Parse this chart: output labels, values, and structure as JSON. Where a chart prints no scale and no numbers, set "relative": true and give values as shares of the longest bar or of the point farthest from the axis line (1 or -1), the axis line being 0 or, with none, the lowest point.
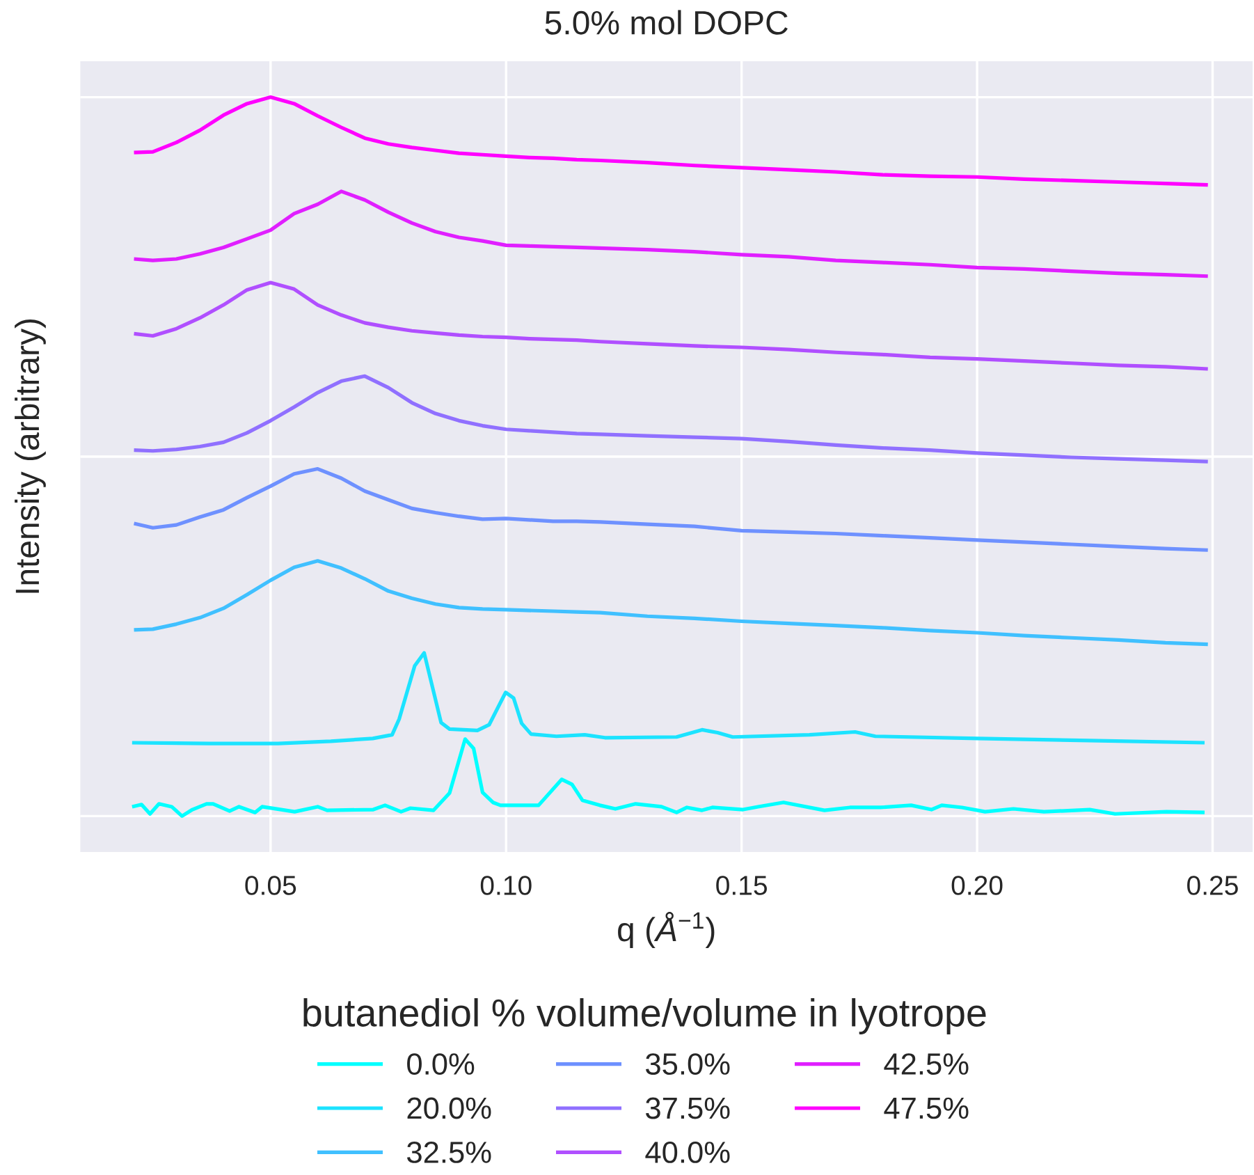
{
  "chart_data": {
    "type": "line",
    "title": "5.0% mol DOPC",
    "xlabel": "q (*Å*$^{−1}$)",
    "ylabel": "Intensity (arbitrary)",
    "legend_title": "butanediol % volume/volume in lyotrope",
    "relative": true,
    "grid": true,
    "legend": "bottom",
    "xlim": [
      0.0096,
      0.2585
    ],
    "xticks": [
      0.05,
      {
        "value": 0.1,
        "label": "0.10"
      },
      0.15,
      {
        "value": 0.2,
        "label": "0.20"
      },
      0.25
    ],
    "x": [
      0.021,
      0.025,
      0.03,
      0.035,
      0.04,
      0.045,
      0.05,
      0.055,
      0.06,
      0.065,
      0.07,
      0.075,
      0.08,
      0.085,
      0.09,
      0.095,
      0.1,
      0.105,
      0.11,
      0.115,
      0.12,
      0.13,
      0.14,
      0.15,
      0.16,
      0.17,
      0.18,
      0.19,
      0.2,
      0.21,
      0.22,
      0.23,
      0.24,
      0.249
    ],
    "series": [
      {
        "name": "0.0%",
        "color": "#00ffff",
        "x": [
          0.0206,
          0.0226,
          0.0244,
          0.0263,
          0.029,
          0.0312,
          0.0334,
          0.0364,
          0.0378,
          0.0413,
          0.0433,
          0.0467,
          0.0482,
          0.0551,
          0.06,
          0.062,
          0.0718,
          0.0743,
          0.0777,
          0.0797,
          0.0846,
          0.088,
          0.0913,
          0.0931,
          0.095,
          0.0972,
          0.0988,
          0.1069,
          0.1118,
          0.114,
          0.1162,
          0.1199,
          0.1232,
          0.1275,
          0.133,
          0.1362,
          0.1384,
          0.1416,
          0.1438,
          0.1503,
          0.1535,
          0.1589,
          0.1676,
          0.173,
          0.1795,
          0.186,
          0.1903,
          0.1925,
          0.1968,
          0.2017,
          0.2077,
          0.2142,
          0.2239,
          0.2293,
          0.2402,
          0.2483
        ],
        "values": [
          0.013,
          0.016,
          0.003,
          0.017,
          0.013,
          0.0,
          0.009,
          0.017,
          0.017,
          0.007,
          0.013,
          0.005,
          0.013,
          0.006,
          0.013,
          0.008,
          0.009,
          0.015,
          0.006,
          0.011,
          0.008,
          0.032,
          0.107,
          0.094,
          0.033,
          0.019,
          0.015,
          0.015,
          0.051,
          0.044,
          0.022,
          0.015,
          0.01,
          0.017,
          0.013,
          0.005,
          0.012,
          0.008,
          0.012,
          0.009,
          0.013,
          0.019,
          0.008,
          0.012,
          0.012,
          0.015,
          0.009,
          0.015,
          0.012,
          0.006,
          0.01,
          0.006,
          0.009,
          0.003,
          0.006,
          0.005
        ]
      },
      {
        "name": "20.0%",
        "color": "#1ce3ff",
        "x": [
          0.0206,
          0.0369,
          0.0516,
          0.0628,
          0.0717,
          0.0758,
          0.0773,
          0.0806,
          0.0826,
          0.0862,
          0.088,
          0.0939,
          0.0964,
          0.0999,
          0.1016,
          0.1033,
          0.1053,
          0.1107,
          0.1167,
          0.121,
          0.1362,
          0.1416,
          0.1449,
          0.1481,
          0.1644,
          0.1741,
          0.1784,
          0.2001,
          0.2239,
          0.2483
        ],
        "values": [
          0.102,
          0.101,
          0.101,
          0.104,
          0.108,
          0.113,
          0.135,
          0.209,
          0.227,
          0.13,
          0.121,
          0.119,
          0.127,
          0.172,
          0.164,
          0.129,
          0.114,
          0.111,
          0.113,
          0.109,
          0.11,
          0.12,
          0.116,
          0.11,
          0.113,
          0.117,
          0.111,
          0.108,
          0.105,
          0.102
        ]
      },
      {
        "name": "32.5%",
        "color": "#40c0ff",
        "values": [
          0.259,
          0.26,
          0.267,
          0.276,
          0.289,
          0.308,
          0.328,
          0.346,
          0.355,
          0.345,
          0.33,
          0.313,
          0.303,
          0.295,
          0.29,
          0.288,
          0.287,
          0.286,
          0.285,
          0.284,
          0.283,
          0.278,
          0.275,
          0.271,
          0.268,
          0.265,
          0.262,
          0.258,
          0.255,
          0.251,
          0.248,
          0.245,
          0.241,
          0.239
        ]
      },
      {
        "name": "35.0%",
        "color": "#6e91ff",
        "values": [
          0.407,
          0.401,
          0.405,
          0.416,
          0.426,
          0.443,
          0.459,
          0.476,
          0.483,
          0.47,
          0.452,
          0.44,
          0.428,
          0.422,
          0.417,
          0.413,
          0.414,
          0.412,
          0.41,
          0.41,
          0.409,
          0.406,
          0.403,
          0.397,
          0.395,
          0.393,
          0.39,
          0.387,
          0.384,
          0.381,
          0.378,
          0.375,
          0.372,
          0.37
        ]
      },
      {
        "name": "37.5%",
        "color": "#9070ff",
        "values": [
          0.509,
          0.508,
          0.51,
          0.514,
          0.52,
          0.533,
          0.55,
          0.569,
          0.589,
          0.605,
          0.612,
          0.596,
          0.575,
          0.56,
          0.55,
          0.543,
          0.538,
          0.536,
          0.534,
          0.532,
          0.531,
          0.529,
          0.527,
          0.525,
          0.521,
          0.516,
          0.512,
          0.509,
          0.505,
          0.502,
          0.499,
          0.497,
          0.495,
          0.493
        ]
      },
      {
        "name": "40.0%",
        "color": "#b04fff",
        "values": [
          0.671,
          0.668,
          0.678,
          0.693,
          0.711,
          0.732,
          0.742,
          0.733,
          0.711,
          0.697,
          0.686,
          0.68,
          0.675,
          0.672,
          0.669,
          0.667,
          0.666,
          0.664,
          0.663,
          0.662,
          0.66,
          0.657,
          0.654,
          0.652,
          0.649,
          0.645,
          0.642,
          0.638,
          0.636,
          0.633,
          0.63,
          0.627,
          0.625,
          0.622
        ]
      },
      {
        "name": "42.5%",
        "color": "#e01fff",
        "values": [
          0.775,
          0.773,
          0.775,
          0.782,
          0.791,
          0.803,
          0.815,
          0.838,
          0.851,
          0.869,
          0.857,
          0.84,
          0.825,
          0.813,
          0.805,
          0.8,
          0.794,
          0.793,
          0.792,
          0.791,
          0.79,
          0.788,
          0.785,
          0.781,
          0.778,
          0.773,
          0.77,
          0.767,
          0.763,
          0.761,
          0.758,
          0.755,
          0.753,
          0.751
        ]
      },
      {
        "name": "47.5%",
        "color": "#ff00ff",
        "values": [
          0.923,
          0.924,
          0.937,
          0.954,
          0.975,
          0.991,
          1.0,
          0.991,
          0.974,
          0.958,
          0.943,
          0.935,
          0.93,
          0.926,
          0.922,
          0.92,
          0.918,
          0.916,
          0.915,
          0.913,
          0.912,
          0.909,
          0.905,
          0.902,
          0.899,
          0.896,
          0.892,
          0.89,
          0.889,
          0.886,
          0.884,
          0.882,
          0.88,
          0.878
        ]
      }
    ]
  }
}
